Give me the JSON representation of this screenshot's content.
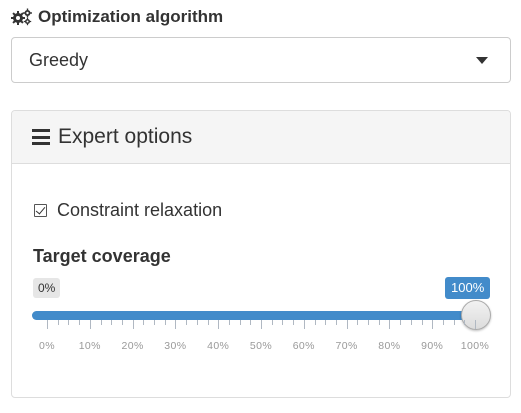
{
  "algorithm": {
    "label": "Optimization algorithm",
    "icon": "gears-icon",
    "selected": "Greedy"
  },
  "expert_panel": {
    "title": "Expert options",
    "icon": "bars-icon",
    "constraint_relaxation": {
      "label": "Constraint relaxation",
      "checked": true
    },
    "target_coverage": {
      "label": "Target coverage",
      "min_label": "0%",
      "max_label": "100%",
      "value_percent": 100,
      "accent_color": "#428bca",
      "tick_labels": [
        "0%",
        "10%",
        "20%",
        "30%",
        "40%",
        "50%",
        "60%",
        "70%",
        "80%",
        "90%",
        "100%"
      ]
    }
  }
}
